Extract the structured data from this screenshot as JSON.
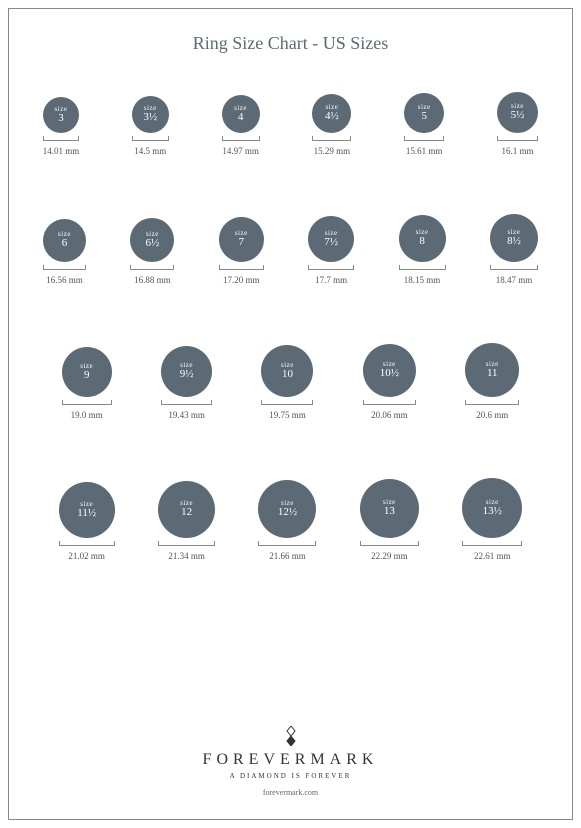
{
  "title": "Ring Size Chart - US Sizes",
  "circle_color": "#5b6a74",
  "size_label": "size",
  "rows": [
    {
      "cols": 6,
      "items": [
        {
          "size": "3",
          "mm": "14.01 mm",
          "d": 36
        },
        {
          "size": "3½",
          "mm": "14.5 mm",
          "d": 37
        },
        {
          "size": "4",
          "mm": "14.97 mm",
          "d": 38
        },
        {
          "size": "4½",
          "mm": "15.29 mm",
          "d": 39
        },
        {
          "size": "5",
          "mm": "15.61 mm",
          "d": 40
        },
        {
          "size": "5½",
          "mm": "16.1 mm",
          "d": 41
        }
      ]
    },
    {
      "cols": 6,
      "items": [
        {
          "size": "6",
          "mm": "16.56 mm",
          "d": 43
        },
        {
          "size": "6½",
          "mm": "16.88 mm",
          "d": 44
        },
        {
          "size": "7",
          "mm": "17.20 mm",
          "d": 45
        },
        {
          "size": "7½",
          "mm": "17.7 mm",
          "d": 46
        },
        {
          "size": "8",
          "mm": "18.15 mm",
          "d": 47
        },
        {
          "size": "8½",
          "mm": "18.47 mm",
          "d": 48
        }
      ]
    },
    {
      "cols": 5,
      "items": [
        {
          "size": "9",
          "mm": "19.0 mm",
          "d": 50
        },
        {
          "size": "9½",
          "mm": "19.43 mm",
          "d": 51
        },
        {
          "size": "10",
          "mm": "19.75 mm",
          "d": 52
        },
        {
          "size": "10½",
          "mm": "20.06 mm",
          "d": 53
        },
        {
          "size": "11",
          "mm": "20.6 mm",
          "d": 54
        }
      ]
    },
    {
      "cols": 5,
      "items": [
        {
          "size": "11½",
          "mm": "21.02 mm",
          "d": 56
        },
        {
          "size": "12",
          "mm": "21.34 mm",
          "d": 57
        },
        {
          "size": "12½",
          "mm": "21.66 mm",
          "d": 58
        },
        {
          "size": "13",
          "mm": "22.29 mm",
          "d": 59
        },
        {
          "size": "13½",
          "mm": "22.61 mm",
          "d": 60
        }
      ]
    }
  ],
  "brand": "FOREVERMARK",
  "tagline": "A DIAMOND IS FOREVER",
  "url": "forevermark.com"
}
